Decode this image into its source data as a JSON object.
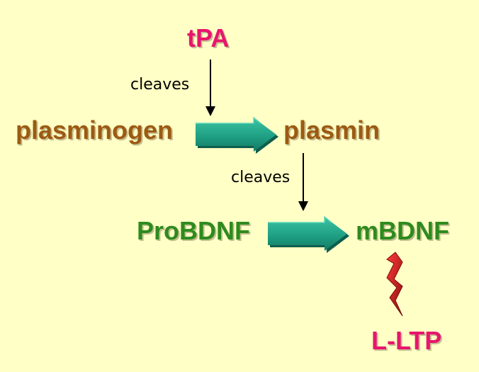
{
  "colors": {
    "background": "#FFFFC6",
    "tpa": "#E8156E",
    "plasminogen": "#9C5A12",
    "plasmin": "#9C5A12",
    "probdnf": "#2E8B1E",
    "mbdnf": "#2E8B1E",
    "lltp": "#E8156E",
    "arrow_fill": "#1FA084",
    "lightning": "#DD1E1E"
  },
  "nodes": {
    "tpa": "tPA",
    "plasminogen": "plasminogen",
    "plasmin": "plasmin",
    "probdnf": "ProBDNF",
    "mbdnf": "mBDNF",
    "lltp": "L-LTP"
  },
  "edges": {
    "cleaves_1": "cleaves",
    "cleaves_2": "cleaves"
  },
  "icons": [
    "block-arrow-icon",
    "lightning-bolt-icon",
    "down-arrow-icon"
  ]
}
